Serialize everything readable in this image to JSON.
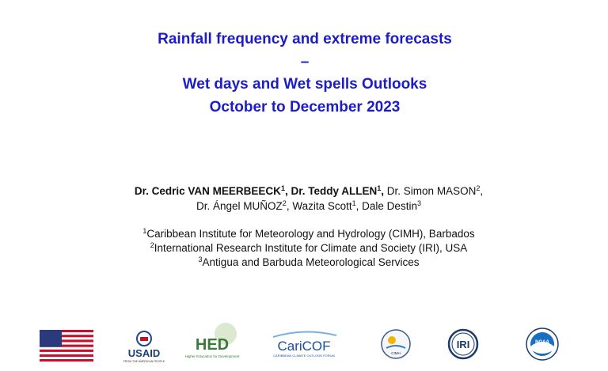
{
  "title_lines": [
    "Rainfall frequency and extreme forecasts",
    "–",
    "Wet days and Wet spells Outlooks",
    "October to December 2023"
  ],
  "author_lines": [
    [
      {
        "name": "Dr. Cedric VAN MEERBEECK",
        "affil": "1",
        "sep": ",",
        "bold": true
      },
      {
        "name": "Dr. Teddy ALLEN",
        "affil": "1",
        "sep": ",",
        "bold": true
      },
      {
        "name": "Dr. Simon MASON",
        "affil": "2",
        "sep": ",",
        "bold": false
      }
    ],
    [
      {
        "name": "Dr. Ángel MUÑOZ",
        "affil": "2",
        "sep": ",",
        "bold": false
      },
      {
        "name": "Wazita Scott",
        "affil": "1",
        "sep": ",",
        "bold": false
      },
      {
        "name": "Dale Destin",
        "affil": "3",
        "bold": false
      }
    ]
  ],
  "affiliations": [
    {
      "num": "1",
      "text": "Caribbean Institute for Meteorology and Hydrology (CIMH), Barbados"
    },
    {
      "num": "2",
      "text": "International Research Institute for Climate and Society (IRI), USA"
    },
    {
      "num": "3",
      "text": "Antigua and Barbuda Meteorological Services"
    }
  ],
  "logos": {
    "usaid": "USAID",
    "usaid_tagline": "FROM THE AMERICAN PEOPLE",
    "hed": "HED",
    "hed_tagline": "Higher Education for Development",
    "caricof": "CariCOF",
    "caricof_tagline": "CARIBBEAN CLIMATE OUTLOOK FORUM",
    "cimh": "CIMH",
    "iri": "IRI",
    "noaa": "NOAA"
  }
}
